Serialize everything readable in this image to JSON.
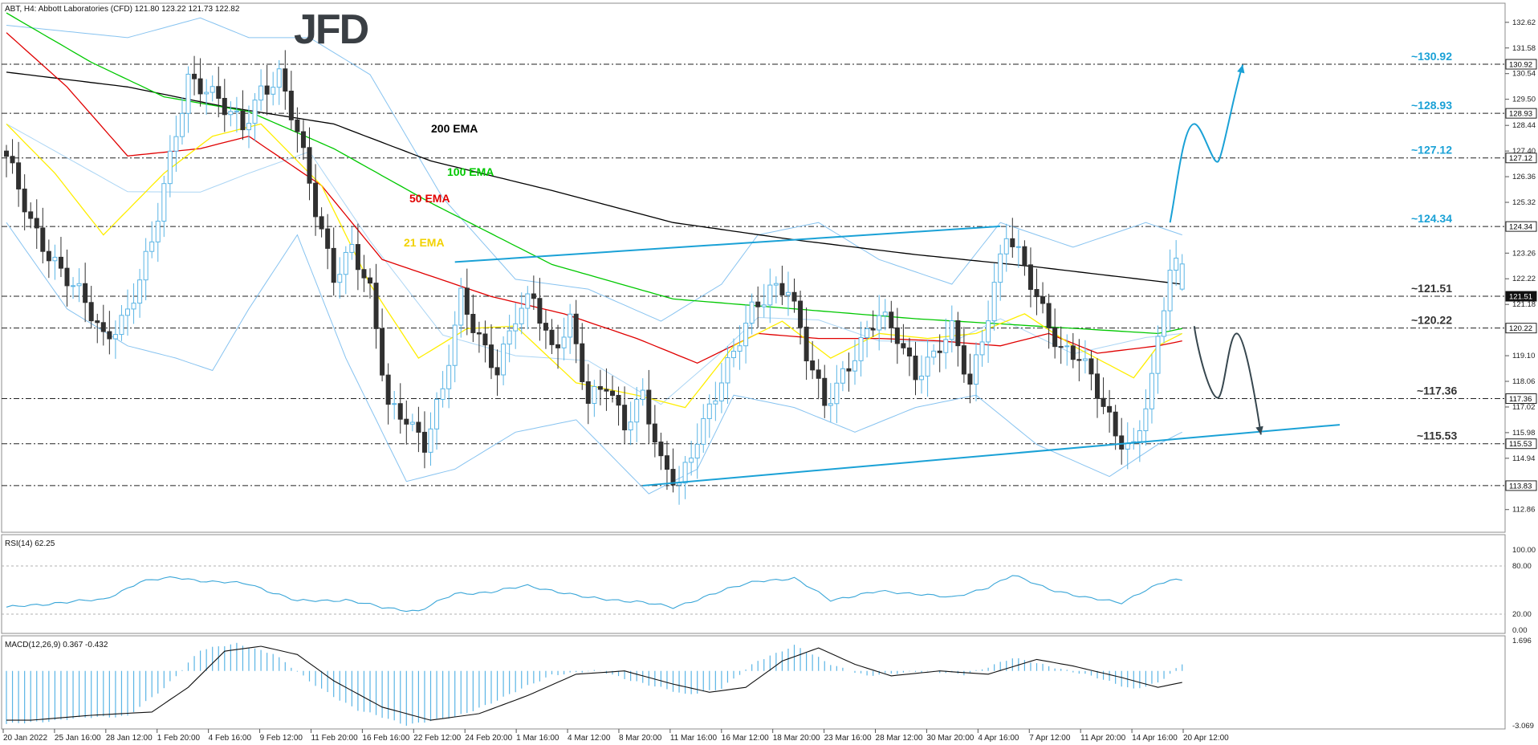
{
  "header": {
    "symbol_line": "ABT, H4:  Abbott Laboratories (CFD)  121.80 123.22 121.73 122.82",
    "logo": "JFD"
  },
  "colors": {
    "ema200": "#000000",
    "ema100": "#00c800",
    "ema50": "#e00000",
    "ema21": "#ffee00",
    "bollinger": "#87c3f0",
    "bull_candle": "#5bb5e5",
    "bear_candle": "#303030",
    "trendline": "#1aa1d6",
    "arrow_down": "#37474f",
    "level_label": "#1aa1d6"
  },
  "indicator_labels": {
    "ema200": "200 EMA",
    "ema100": "100 EMA",
    "ema50": "50 EMA",
    "ema21": "21 EMA"
  },
  "levels": [
    {
      "price": 130.92,
      "label": "~130.92",
      "axis": "130.92"
    },
    {
      "price": 128.93,
      "label": "~128.93",
      "axis": "128.93"
    },
    {
      "price": 127.12,
      "label": "~127.12",
      "axis": "127.12"
    },
    {
      "price": 124.34,
      "label": "~124.34",
      "axis": "124.34"
    },
    {
      "price": 121.51,
      "label": "~121.51",
      "axis": "121.51"
    },
    {
      "price": 120.22,
      "label": "~120.22",
      "axis": "120.22"
    },
    {
      "price": 117.36,
      "label": "~117.36",
      "axis": "117.36"
    },
    {
      "price": 115.53,
      "label": "~115.53",
      "axis": "115.53"
    },
    {
      "price": 113.83,
      "label": "",
      "axis": "113.83"
    }
  ],
  "price_axis": {
    "ticks": [
      "132.62",
      "131.58",
      "130.54",
      "129.50",
      "128.44",
      "127.40",
      "126.36",
      "125.32",
      "123.26",
      "122.22",
      "121.18",
      "119.10",
      "118.06",
      "117.02",
      "115.98",
      "114.94",
      "112.86"
    ]
  },
  "rsi": {
    "label": "RSI(14) 62.25",
    "ticks": [
      "100.00",
      "80.00",
      "20.00",
      "0.00"
    ]
  },
  "macd": {
    "label": "MACD(12,26,9) 0.367 -0.432",
    "ticks": [
      "1.696",
      "-3.069"
    ]
  },
  "time_axis": {
    "labels": [
      "20 Jan 2022",
      "25 Jan 16:00",
      "28 Jan 12:00",
      "1 Feb 20:00",
      "4 Feb 16:00",
      "9 Feb 12:00",
      "11 Feb 20:00",
      "16 Feb 16:00",
      "22 Feb 12:00",
      "24 Feb 20:00",
      "1 Mar 16:00",
      "4 Mar 12:00",
      "8 Mar 20:00",
      "11 Mar 16:00",
      "16 Mar 12:00",
      "18 Mar 20:00",
      "23 Mar 16:00",
      "28 Mar 12:00",
      "30 Mar 20:00",
      "4 Apr 16:00",
      "7 Apr 12:00",
      "11 Apr 20:00",
      "14 Apr 16:00",
      "20 Apr 12:00"
    ]
  },
  "chart_data": {
    "type": "candlestick",
    "symbol": "ABT",
    "timeframe": "H4",
    "last_ohlc": {
      "open": 121.8,
      "high": 123.22,
      "low": 121.73,
      "close": 122.82
    },
    "ylim": [
      112.2,
      133.2
    ],
    "rsi_range": [
      0,
      100
    ],
    "macd_range": [
      -3.069,
      1.696
    ],
    "close_path": [
      [
        0,
        127.0
      ],
      [
        4,
        124.5
      ],
      [
        8,
        123.0
      ],
      [
        12,
        121.5
      ],
      [
        16,
        119.8
      ],
      [
        20,
        121.0
      ],
      [
        24,
        123.5
      ],
      [
        27,
        127.0
      ],
      [
        30,
        130.5
      ],
      [
        33,
        130.0
      ],
      [
        36,
        129.0
      ],
      [
        39,
        128.3
      ],
      [
        42,
        130.0
      ],
      [
        45,
        130.5
      ],
      [
        48,
        128.0
      ],
      [
        51,
        125.0
      ],
      [
        54,
        122.5
      ],
      [
        57,
        123.5
      ],
      [
        60,
        121.5
      ],
      [
        63,
        117.0
      ],
      [
        66,
        116.8
      ],
      [
        69,
        115.5
      ],
      [
        72,
        117.5
      ],
      [
        75,
        121.5
      ],
      [
        78,
        120.0
      ],
      [
        81,
        118.5
      ],
      [
        84,
        120.5
      ],
      [
        87,
        121.5
      ],
      [
        90,
        119.5
      ],
      [
        93,
        120.5
      ],
      [
        96,
        117.0
      ],
      [
        99,
        118.0
      ],
      [
        102,
        116.5
      ],
      [
        105,
        117.5
      ],
      [
        108,
        114.5
      ],
      [
        111,
        113.9
      ],
      [
        114,
        116.0
      ],
      [
        117,
        117.5
      ],
      [
        120,
        119.0
      ],
      [
        123,
        121.0
      ],
      [
        126,
        122.0
      ],
      [
        129,
        121.8
      ],
      [
        132,
        119.0
      ],
      [
        135,
        117.2
      ],
      [
        138,
        118.5
      ],
      [
        141,
        119.5
      ],
      [
        144,
        120.6
      ],
      [
        147,
        120.0
      ],
      [
        150,
        118.5
      ],
      [
        153,
        119.0
      ],
      [
        156,
        120.0
      ],
      [
        159,
        118.0
      ],
      [
        162,
        121.0
      ],
      [
        165,
        124.0
      ],
      [
        168,
        122.5
      ],
      [
        171,
        121.0
      ],
      [
        174,
        119.5
      ],
      [
        177,
        119.0
      ],
      [
        180,
        117.5
      ],
      [
        183,
        116.0
      ],
      [
        186,
        115.5
      ],
      [
        189,
        118.0
      ],
      [
        192,
        122.5
      ],
      [
        194,
        122.8
      ]
    ],
    "rsi_path": [
      [
        0,
        28
      ],
      [
        8,
        34
      ],
      [
        16,
        38
      ],
      [
        22,
        60
      ],
      [
        28,
        66
      ],
      [
        34,
        60
      ],
      [
        40,
        58
      ],
      [
        48,
        36
      ],
      [
        56,
        38
      ],
      [
        62,
        28
      ],
      [
        68,
        24
      ],
      [
        74,
        45
      ],
      [
        80,
        48
      ],
      [
        86,
        55
      ],
      [
        90,
        50
      ],
      [
        96,
        40
      ],
      [
        104,
        36
      ],
      [
        110,
        28
      ],
      [
        116,
        44
      ],
      [
        124,
        62
      ],
      [
        130,
        64
      ],
      [
        136,
        38
      ],
      [
        144,
        48
      ],
      [
        150,
        46
      ],
      [
        156,
        40
      ],
      [
        162,
        54
      ],
      [
        166,
        68
      ],
      [
        172,
        52
      ],
      [
        178,
        40
      ],
      [
        184,
        35
      ],
      [
        188,
        50
      ],
      [
        192,
        62
      ],
      [
        194,
        62.25
      ]
    ],
    "macd_path": [
      [
        0,
        -3.0
      ],
      [
        10,
        -2.7
      ],
      [
        20,
        -2.5
      ],
      [
        26,
        -1.0
      ],
      [
        32,
        1.2
      ],
      [
        38,
        1.5
      ],
      [
        44,
        1.0
      ],
      [
        50,
        -0.6
      ],
      [
        58,
        -2.2
      ],
      [
        66,
        -3.0
      ],
      [
        74,
        -2.6
      ],
      [
        82,
        -1.5
      ],
      [
        90,
        -0.2
      ],
      [
        98,
        0.0
      ],
      [
        106,
        -0.8
      ],
      [
        112,
        -1.3
      ],
      [
        118,
        -1.0
      ],
      [
        124,
        0.6
      ],
      [
        130,
        1.4
      ],
      [
        136,
        0.4
      ],
      [
        142,
        -0.3
      ],
      [
        150,
        0.0
      ],
      [
        158,
        -0.2
      ],
      [
        166,
        0.7
      ],
      [
        172,
        0.3
      ],
      [
        180,
        -0.4
      ],
      [
        186,
        -1.0
      ],
      [
        190,
        -0.7
      ],
      [
        194,
        0.367
      ]
    ],
    "ema200_path": [
      [
        0,
        130.6
      ],
      [
        20,
        130.0
      ],
      [
        36,
        129.2
      ],
      [
        54,
        128.5
      ],
      [
        70,
        127.0
      ],
      [
        90,
        125.8
      ],
      [
        110,
        124.5
      ],
      [
        130,
        123.8
      ],
      [
        150,
        123.2
      ],
      [
        170,
        122.7
      ],
      [
        194,
        122.0
      ]
    ],
    "ema100_path": [
      [
        0,
        133.0
      ],
      [
        14,
        131.0
      ],
      [
        26,
        129.6
      ],
      [
        40,
        129.0
      ],
      [
        54,
        127.5
      ],
      [
        70,
        125.3
      ],
      [
        90,
        122.8
      ],
      [
        110,
        121.4
      ],
      [
        130,
        121.0
      ],
      [
        150,
        120.6
      ],
      [
        170,
        120.3
      ],
      [
        190,
        120.0
      ],
      [
        194,
        120.2
      ]
    ],
    "ema50_path": [
      [
        0,
        132.2
      ],
      [
        10,
        130.0
      ],
      [
        20,
        127.2
      ],
      [
        32,
        127.5
      ],
      [
        40,
        128.0
      ],
      [
        52,
        126.0
      ],
      [
        62,
        123.0
      ],
      [
        80,
        121.5
      ],
      [
        92,
        120.8
      ],
      [
        104,
        119.8
      ],
      [
        114,
        118.8
      ],
      [
        124,
        120.0
      ],
      [
        134,
        119.8
      ],
      [
        144,
        119.8
      ],
      [
        154,
        119.7
      ],
      [
        164,
        119.5
      ],
      [
        172,
        120.0
      ],
      [
        180,
        119.2
      ],
      [
        190,
        119.5
      ],
      [
        194,
        119.7
      ]
    ],
    "ema21_path": [
      [
        0,
        128.5
      ],
      [
        8,
        126.5
      ],
      [
        16,
        124.0
      ],
      [
        26,
        126.5
      ],
      [
        34,
        128.0
      ],
      [
        42,
        128.5
      ],
      [
        52,
        126.0
      ],
      [
        60,
        122.0
      ],
      [
        68,
        119.0
      ],
      [
        76,
        120.2
      ],
      [
        84,
        120.3
      ],
      [
        94,
        118.0
      ],
      [
        104,
        117.5
      ],
      [
        112,
        117.0
      ],
      [
        120,
        119.5
      ],
      [
        128,
        120.5
      ],
      [
        136,
        119.0
      ],
      [
        144,
        120.0
      ],
      [
        152,
        119.8
      ],
      [
        160,
        120.0
      ],
      [
        168,
        120.8
      ],
      [
        176,
        119.5
      ],
      [
        186,
        118.2
      ],
      [
        190,
        119.5
      ],
      [
        194,
        120.0
      ]
    ],
    "bb_upper_path": [
      [
        0,
        132.5
      ],
      [
        20,
        132.0
      ],
      [
        32,
        132.8
      ],
      [
        40,
        132.0
      ],
      [
        50,
        132.0
      ],
      [
        60,
        130.5
      ],
      [
        72,
        125.5
      ],
      [
        84,
        122.2
      ],
      [
        96,
        121.8
      ],
      [
        108,
        120.5
      ],
      [
        118,
        122.0
      ],
      [
        124,
        124.0
      ],
      [
        134,
        124.5
      ],
      [
        144,
        123.0
      ],
      [
        156,
        122.0
      ],
      [
        164,
        124.5
      ],
      [
        176,
        123.5
      ],
      [
        188,
        124.5
      ],
      [
        194,
        124.0
      ]
    ],
    "bb_lower_path": [
      [
        0,
        124.5
      ],
      [
        10,
        121.0
      ],
      [
        20,
        119.5
      ],
      [
        28,
        119.0
      ],
      [
        34,
        118.5
      ],
      [
        40,
        121.0
      ],
      [
        48,
        124.0
      ],
      [
        56,
        119.0
      ],
      [
        66,
        114.0
      ],
      [
        74,
        114.5
      ],
      [
        84,
        116.0
      ],
      [
        94,
        116.5
      ],
      [
        106,
        113.5
      ],
      [
        114,
        114.5
      ],
      [
        120,
        117.5
      ],
      [
        130,
        117.0
      ],
      [
        140,
        116.0
      ],
      [
        150,
        117.0
      ],
      [
        160,
        117.5
      ],
      [
        170,
        115.5
      ],
      [
        182,
        114.2
      ],
      [
        190,
        115.5
      ],
      [
        194,
        116.0
      ]
    ],
    "trendlines": [
      {
        "from": [
          74,
          122.9
        ],
        "to": [
          164,
          124.35
        ]
      },
      {
        "from": [
          105,
          113.83
        ],
        "to": [
          220,
          116.3
        ]
      }
    ],
    "projection_up": [
      [
        192,
        124.5
      ],
      [
        196,
        128.5
      ],
      [
        200,
        127.0
      ],
      [
        204,
        130.9
      ]
    ],
    "projection_down": [
      [
        196,
        120.3
      ],
      [
        200,
        117.4
      ],
      [
        203,
        120.0
      ],
      [
        207,
        115.9
      ]
    ]
  }
}
